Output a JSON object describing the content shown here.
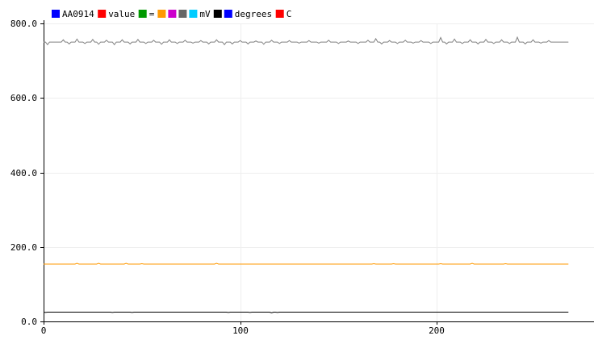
{
  "chart_data": {
    "type": "line",
    "title": "",
    "xlabel": "",
    "ylabel": "",
    "xlim": [
      0,
      280
    ],
    "ylim": [
      0,
      800
    ],
    "x_ticks": [
      0,
      100,
      200
    ],
    "x_tick_labels": [
      "0",
      "100",
      "200"
    ],
    "y_ticks": [
      0,
      200,
      400,
      600,
      800
    ],
    "y_tick_labels": [
      "0.0",
      "200.0",
      "400.0",
      "600.0",
      "800.0"
    ],
    "grid": true,
    "legend_position": "top-left",
    "legend": [
      {
        "label": "AA0914",
        "color": "#0000ff"
      },
      {
        "label": "value",
        "color": "#ff0000"
      },
      {
        "label": "=",
        "color": "#009900"
      },
      {
        "label": "",
        "color": "#ff9900"
      },
      {
        "label": "",
        "color": "#cc00cc"
      },
      {
        "label": "",
        "color": "#666666"
      },
      {
        "label": "mV",
        "color": "#00ccff"
      },
      {
        "label": "",
        "color": "#000000"
      },
      {
        "label": "degrees",
        "color": "#0000ff"
      },
      {
        "label": "C",
        "color": "#ff0000"
      }
    ],
    "series": [
      {
        "color": "#808080",
        "base": 750,
        "x_end": 267,
        "spikes": [
          [
            2,
            -7
          ],
          [
            10,
            6
          ],
          [
            13,
            -5
          ],
          [
            17,
            8
          ],
          [
            21,
            -4
          ],
          [
            25,
            7
          ],
          [
            28,
            -6
          ],
          [
            32,
            5
          ],
          [
            36,
            -7
          ],
          [
            40,
            6
          ],
          [
            44,
            -5
          ],
          [
            48,
            7
          ],
          [
            52,
            -4
          ],
          [
            56,
            5
          ],
          [
            60,
            -6
          ],
          [
            64,
            6
          ],
          [
            68,
            -4
          ],
          [
            72,
            5
          ],
          [
            76,
            -3
          ],
          [
            80,
            4
          ],
          [
            84,
            -5
          ],
          [
            88,
            6
          ],
          [
            92,
            -7
          ],
          [
            96,
            -5
          ],
          [
            100,
            4
          ],
          [
            104,
            -5
          ],
          [
            108,
            3
          ],
          [
            112,
            -6
          ],
          [
            116,
            5
          ],
          [
            120,
            -4
          ],
          [
            125,
            4
          ],
          [
            130,
            -3
          ],
          [
            135,
            4
          ],
          [
            140,
            -3
          ],
          [
            145,
            5
          ],
          [
            150,
            -4
          ],
          [
            155,
            3
          ],
          [
            160,
            -4
          ],
          [
            165,
            5
          ],
          [
            169,
            9
          ],
          [
            172,
            -5
          ],
          [
            176,
            4
          ],
          [
            180,
            -4
          ],
          [
            184,
            5
          ],
          [
            188,
            -3
          ],
          [
            192,
            4
          ],
          [
            197,
            -4
          ],
          [
            202,
            12
          ],
          [
            205,
            -5
          ],
          [
            209,
            8
          ],
          [
            213,
            -4
          ],
          [
            217,
            6
          ],
          [
            221,
            -5
          ],
          [
            225,
            7
          ],
          [
            229,
            -4
          ],
          [
            233,
            6
          ],
          [
            237,
            -4
          ],
          [
            241,
            13
          ],
          [
            245,
            -5
          ],
          [
            249,
            6
          ],
          [
            253,
            -3
          ],
          [
            257,
            4
          ]
        ]
      },
      {
        "color": "#ff9900",
        "base": 154,
        "x_end": 267,
        "spikes": [
          [
            17,
            2
          ],
          [
            28,
            2
          ],
          [
            42,
            2
          ],
          [
            50,
            1
          ],
          [
            88,
            2
          ],
          [
            168,
            1
          ],
          [
            178,
            1
          ],
          [
            202,
            1
          ],
          [
            218,
            2
          ],
          [
            235,
            1
          ]
        ]
      },
      {
        "color": "#000000",
        "base": 25,
        "x_end": 267,
        "spikes": [
          [
            1,
            -1
          ],
          [
            35,
            -1
          ],
          [
            45,
            -1
          ],
          [
            94,
            -1
          ],
          [
            105,
            -1
          ],
          [
            116,
            -2
          ],
          [
            119,
            -1
          ]
        ]
      }
    ]
  }
}
